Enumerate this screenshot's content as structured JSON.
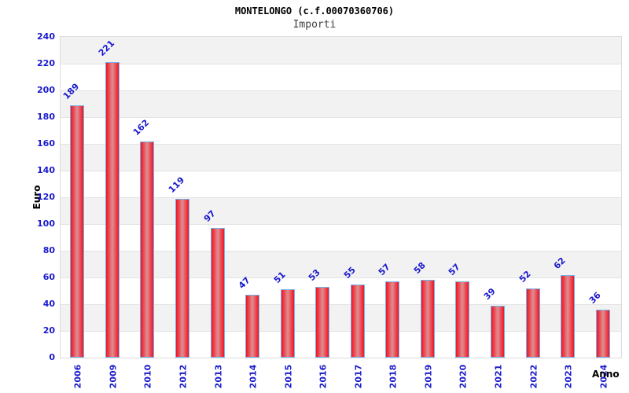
{
  "chart_data": {
    "type": "bar",
    "title": "MONTELONGO (c.f.00070360706)",
    "subtitle": "Importi",
    "xlabel": "Anno",
    "ylabel": "Euro",
    "categories": [
      "2006",
      "2009",
      "2010",
      "2012",
      "2013",
      "2014",
      "2015",
      "2016",
      "2017",
      "2018",
      "2019",
      "2020",
      "2021",
      "2022",
      "2023",
      "2024"
    ],
    "values": [
      189,
      221,
      162,
      119,
      97,
      47,
      51,
      53,
      55,
      57,
      58,
      57,
      39,
      52,
      62,
      36
    ],
    "ylim": [
      0,
      240
    ],
    "ytick_step": 20,
    "grid": true,
    "legend_position": "none",
    "colors": {
      "tick_label_blue": "#1a1acd",
      "value_label_blue": "#1a1acd",
      "bar_red": "#e6192a",
      "bar_highlight": "#dc9093",
      "bar_border_blue": "#74b2e8",
      "band_gray": "#f2f2f2",
      "band_white": "#ffffff",
      "grid_line": "#e3e3e3",
      "title_black": "#000000",
      "subtitle_gray": "#404040"
    }
  }
}
